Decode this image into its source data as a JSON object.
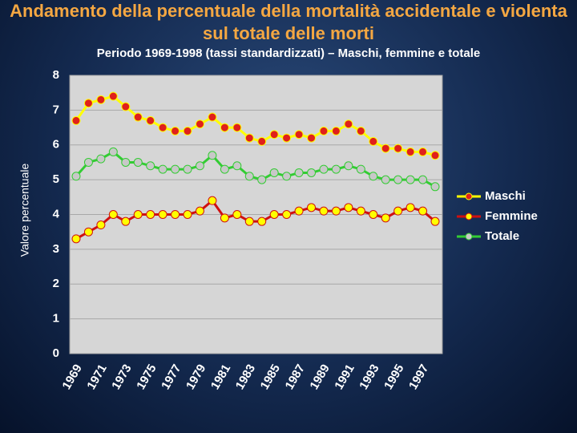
{
  "chart_data": {
    "type": "line",
    "title": "Andamento della percentuale della mortalità accidentale e violenta sul totale delle morti",
    "subtitle": "Periodo 1969-1998 (tassi standardizzati) – Maschi, femmine e totale",
    "y_label": "Valore percentuale",
    "categories": [
      "1969",
      null,
      "1971",
      null,
      "1973",
      null,
      "1975",
      null,
      "1977",
      null,
      "1979",
      null,
      "1981",
      null,
      "1983",
      null,
      "1985",
      null,
      "1987",
      null,
      "1989",
      null,
      "1991",
      null,
      "1993",
      null,
      "1995",
      null,
      "1997",
      null
    ],
    "series": [
      {
        "name": "Maschi",
        "color": "#ffff00",
        "marker_color": "#e0201b",
        "values": [
          6.7,
          7.2,
          7.3,
          7.4,
          7.1,
          6.8,
          6.7,
          6.5,
          6.4,
          6.4,
          6.6,
          6.8,
          6.5,
          6.5,
          6.2,
          6.1,
          6.3,
          6.2,
          6.3,
          6.2,
          6.4,
          6.4,
          6.6,
          6.4,
          6.1,
          5.9,
          5.9,
          5.8,
          5.8,
          5.7
        ]
      },
      {
        "name": "Femmine",
        "color": "#d01010",
        "marker_color": "#ffff00",
        "values": [
          3.3,
          3.5,
          3.7,
          4.0,
          3.8,
          4.0,
          4.0,
          4.0,
          4.0,
          4.0,
          4.1,
          4.4,
          3.9,
          4.0,
          3.8,
          3.8,
          4.0,
          4.0,
          4.1,
          4.2,
          4.1,
          4.1,
          4.2,
          4.1,
          4.0,
          3.9,
          4.1,
          4.2,
          4.1,
          3.8
        ]
      },
      {
        "name": "Totale",
        "color": "#33cc33",
        "marker_color": "#c8c8c8",
        "values": [
          5.1,
          5.5,
          5.6,
          5.8,
          5.5,
          5.5,
          5.4,
          5.3,
          5.3,
          5.3,
          5.4,
          5.7,
          5.3,
          5.4,
          5.1,
          5.0,
          5.2,
          5.1,
          5.2,
          5.2,
          5.3,
          5.3,
          5.4,
          5.3,
          5.1,
          5.0,
          5.0,
          5.0,
          5.0,
          4.8
        ]
      }
    ],
    "ylim": [
      0,
      8
    ],
    "yticks": [
      0,
      1,
      2,
      3,
      4,
      5,
      6,
      7,
      8
    ],
    "grid": true,
    "legend": "right"
  }
}
